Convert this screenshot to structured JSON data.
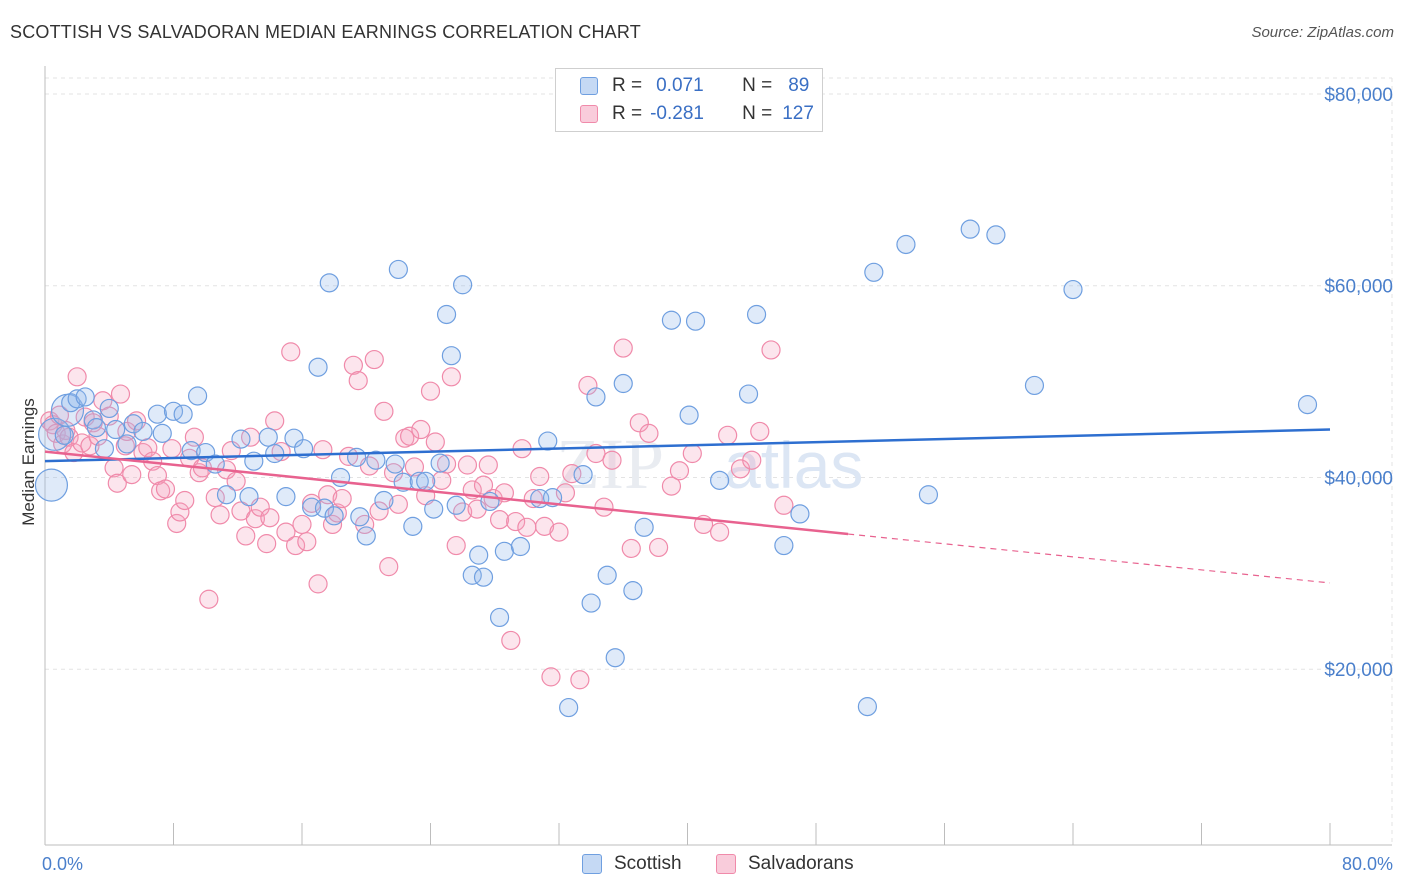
{
  "title": "SCOTTISH VS SALVADORAN MEDIAN EARNINGS CORRELATION CHART",
  "source": "Source: ZipAtlas.com",
  "colors": {
    "scottish": "#6f9fe0",
    "scottish_line": "#2e6fd0",
    "salvadoran": "#f08aaa",
    "salvadoran_line": "#e8628f",
    "accent_text": "#4a7fcb"
  },
  "legend": {
    "row1": {
      "r_label": "R =",
      "r_value": "0.071",
      "n_label": "N =",
      "n_value": "89"
    },
    "row2": {
      "r_label": "R =",
      "r_value": "-0.281",
      "n_label": "N =",
      "n_value": "127"
    }
  },
  "bottom_legend": {
    "scottish": "Scottish",
    "salvadoran": "Salvadorans"
  },
  "chart_data": {
    "type": "scatter",
    "xlabel": "",
    "ylabel": "Median Earnings",
    "xlim": [
      0,
      80
    ],
    "ylim": [
      1666,
      81666
    ],
    "x_tick_labels": [
      "0.0%",
      "80.0%"
    ],
    "y_ticks": [
      20000,
      40000,
      60000,
      80000
    ],
    "y_tick_labels": [
      "$20,000",
      "$40,000",
      "$60,000",
      "$80,000"
    ],
    "grid": true,
    "legend_position": "top-center",
    "series": [
      {
        "name": "Scottish",
        "r": 0.071,
        "n": 89,
        "trend": {
          "x": [
            0,
            80
          ],
          "y": [
            41700,
            45000
          ]
        },
        "points": [
          [
            0.4,
            39200,
            "L"
          ],
          [
            0.6,
            44500,
            "L"
          ],
          [
            1.4,
            47000,
            "L"
          ],
          [
            1.2,
            44400
          ],
          [
            1.6,
            47800
          ],
          [
            2.0,
            48200
          ],
          [
            2.5,
            48400
          ],
          [
            3.0,
            46000
          ],
          [
            3.2,
            45200
          ],
          [
            3.7,
            43000
          ],
          [
            4.0,
            47200
          ],
          [
            4.4,
            45000
          ],
          [
            5.1,
            43500
          ],
          [
            5.5,
            45600
          ],
          [
            6.1,
            44800
          ],
          [
            7.0,
            46600
          ],
          [
            7.3,
            44600
          ],
          [
            8.0,
            46900
          ],
          [
            8.6,
            46600
          ],
          [
            9.5,
            48500
          ],
          [
            9.1,
            42800
          ],
          [
            10.0,
            42600
          ],
          [
            10.6,
            41400
          ],
          [
            11.3,
            38200
          ],
          [
            12.2,
            44000
          ],
          [
            12.7,
            38000
          ],
          [
            13.0,
            41700
          ],
          [
            13.9,
            44200
          ],
          [
            14.3,
            42500
          ],
          [
            15.0,
            38000
          ],
          [
            15.5,
            44100
          ],
          [
            16.1,
            43000
          ],
          [
            16.6,
            36900
          ],
          [
            17.4,
            36800
          ],
          [
            18.0,
            36000
          ],
          [
            17.0,
            51500
          ],
          [
            17.7,
            60300
          ],
          [
            18.4,
            40000
          ],
          [
            19.4,
            42100
          ],
          [
            19.6,
            35900
          ],
          [
            20.0,
            33900
          ],
          [
            20.6,
            41800
          ],
          [
            21.1,
            37600
          ],
          [
            21.8,
            41400
          ],
          [
            22.0,
            61700
          ],
          [
            22.3,
            39500
          ],
          [
            22.9,
            34900
          ],
          [
            23.3,
            39600
          ],
          [
            23.7,
            39600
          ],
          [
            24.2,
            36700
          ],
          [
            24.6,
            41500
          ],
          [
            25.0,
            57000
          ],
          [
            25.3,
            52700
          ],
          [
            25.6,
            37100
          ],
          [
            26.0,
            60100
          ],
          [
            26.6,
            29800
          ],
          [
            27.0,
            31900
          ],
          [
            27.3,
            29600
          ],
          [
            27.7,
            37500
          ],
          [
            28.3,
            25400
          ],
          [
            28.6,
            32300
          ],
          [
            29.6,
            32800
          ],
          [
            30.8,
            37800
          ],
          [
            31.3,
            43800
          ],
          [
            31.6,
            37900
          ],
          [
            33.5,
            40300
          ],
          [
            32.6,
            16000
          ],
          [
            34.0,
            26900
          ],
          [
            34.3,
            48400
          ],
          [
            35.0,
            29800
          ],
          [
            35.5,
            21200
          ],
          [
            36.0,
            49800
          ],
          [
            36.6,
            28200
          ],
          [
            37.3,
            34800
          ],
          [
            39.0,
            56400
          ],
          [
            40.5,
            56300
          ],
          [
            40.1,
            46500
          ],
          [
            42.0,
            39700
          ],
          [
            43.8,
            48700
          ],
          [
            44.3,
            57000
          ],
          [
            46.0,
            32900
          ],
          [
            47.0,
            36200
          ],
          [
            51.2,
            16100
          ],
          [
            51.6,
            61400
          ],
          [
            53.6,
            64300
          ],
          [
            55.0,
            38200
          ],
          [
            57.6,
            65900
          ],
          [
            59.2,
            65300
          ],
          [
            61.6,
            49600
          ],
          [
            64.0,
            59600
          ],
          [
            78.6,
            47600
          ]
        ]
      },
      {
        "name": "Salvadorans",
        "r": -0.281,
        "n": 127,
        "trend": {
          "x": [
            0,
            50
          ],
          "y": [
            42700,
            34100
          ]
        },
        "trend_extension": {
          "x": [
            50,
            80
          ],
          "y": [
            34100,
            29000
          ]
        },
        "points": [
          [
            0.3,
            45900
          ],
          [
            0.5,
            45500
          ],
          [
            0.7,
            44600
          ],
          [
            0.9,
            46500
          ],
          [
            1.1,
            43500
          ],
          [
            1.3,
            44900
          ],
          [
            1.5,
            44200
          ],
          [
            1.8,
            42600
          ],
          [
            2.0,
            50500
          ],
          [
            2.3,
            43600
          ],
          [
            2.5,
            46300
          ],
          [
            2.8,
            43300
          ],
          [
            3.0,
            45700
          ],
          [
            3.3,
            44300
          ],
          [
            3.6,
            48000
          ],
          [
            4.0,
            46400
          ],
          [
            4.3,
            41000
          ],
          [
            4.5,
            39400
          ],
          [
            4.7,
            48700
          ],
          [
            5.0,
            43300
          ],
          [
            5.1,
            44800
          ],
          [
            5.4,
            40300
          ],
          [
            5.7,
            45900
          ],
          [
            6.1,
            42600
          ],
          [
            6.4,
            43100
          ],
          [
            6.7,
            41700
          ],
          [
            7.0,
            40200
          ],
          [
            7.2,
            38600
          ],
          [
            7.5,
            38800
          ],
          [
            7.9,
            43000
          ],
          [
            8.2,
            35200
          ],
          [
            8.4,
            36400
          ],
          [
            8.7,
            37600
          ],
          [
            9.0,
            42000
          ],
          [
            9.3,
            44200
          ],
          [
            9.6,
            40500
          ],
          [
            9.8,
            41000
          ],
          [
            10.2,
            27300
          ],
          [
            10.6,
            37900
          ],
          [
            10.9,
            36100
          ],
          [
            11.3,
            40800
          ],
          [
            11.6,
            42800
          ],
          [
            11.9,
            39600
          ],
          [
            12.2,
            36500
          ],
          [
            12.5,
            33900
          ],
          [
            12.8,
            44200
          ],
          [
            13.1,
            35700
          ],
          [
            13.4,
            36900
          ],
          [
            13.8,
            33100
          ],
          [
            14.0,
            35800
          ],
          [
            14.3,
            45900
          ],
          [
            14.7,
            42700
          ],
          [
            15.0,
            34300
          ],
          [
            15.3,
            53100
          ],
          [
            15.6,
            32900
          ],
          [
            16.0,
            35100
          ],
          [
            16.3,
            33300
          ],
          [
            16.6,
            37300
          ],
          [
            17.0,
            28900
          ],
          [
            17.3,
            42900
          ],
          [
            17.6,
            38200
          ],
          [
            17.9,
            35100
          ],
          [
            18.2,
            36300
          ],
          [
            18.5,
            37800
          ],
          [
            18.9,
            42200
          ],
          [
            19.2,
            51700
          ],
          [
            19.5,
            50100
          ],
          [
            19.9,
            35100
          ],
          [
            20.2,
            41200
          ],
          [
            20.5,
            52300
          ],
          [
            20.8,
            36500
          ],
          [
            21.1,
            46900
          ],
          [
            21.4,
            30700
          ],
          [
            21.7,
            40500
          ],
          [
            22.0,
            37200
          ],
          [
            22.4,
            44100
          ],
          [
            22.7,
            44300
          ],
          [
            23.0,
            41100
          ],
          [
            23.4,
            45000
          ],
          [
            23.7,
            38100
          ],
          [
            24.0,
            49000
          ],
          [
            24.3,
            43700
          ],
          [
            24.7,
            39700
          ],
          [
            25.0,
            41400
          ],
          [
            25.3,
            50500
          ],
          [
            25.6,
            32900
          ],
          [
            26.0,
            36400
          ],
          [
            26.3,
            41300
          ],
          [
            26.6,
            38700
          ],
          [
            26.9,
            36700
          ],
          [
            27.3,
            39200
          ],
          [
            27.6,
            41300
          ],
          [
            27.9,
            37800
          ],
          [
            28.3,
            35600
          ],
          [
            28.6,
            38400
          ],
          [
            29.0,
            23000
          ],
          [
            29.3,
            35400
          ],
          [
            29.7,
            43000
          ],
          [
            30.0,
            34800
          ],
          [
            30.4,
            37800
          ],
          [
            30.8,
            40100
          ],
          [
            31.1,
            34900
          ],
          [
            31.5,
            19200
          ],
          [
            32.0,
            34300
          ],
          [
            32.4,
            38400
          ],
          [
            32.8,
            40400
          ],
          [
            33.3,
            18900
          ],
          [
            33.8,
            49600
          ],
          [
            34.3,
            42500
          ],
          [
            34.8,
            36900
          ],
          [
            35.3,
            41800
          ],
          [
            36.0,
            53500
          ],
          [
            36.5,
            32600
          ],
          [
            37.0,
            45700
          ],
          [
            37.6,
            44600
          ],
          [
            38.2,
            32700
          ],
          [
            39.0,
            39100
          ],
          [
            39.5,
            40700
          ],
          [
            40.3,
            42500
          ],
          [
            41.0,
            35100
          ],
          [
            42.0,
            34300
          ],
          [
            42.5,
            44400
          ],
          [
            43.3,
            40900
          ],
          [
            44.0,
            41800
          ],
          [
            44.5,
            44800
          ],
          [
            45.2,
            53300
          ],
          [
            46.0,
            37100
          ]
        ]
      }
    ]
  }
}
